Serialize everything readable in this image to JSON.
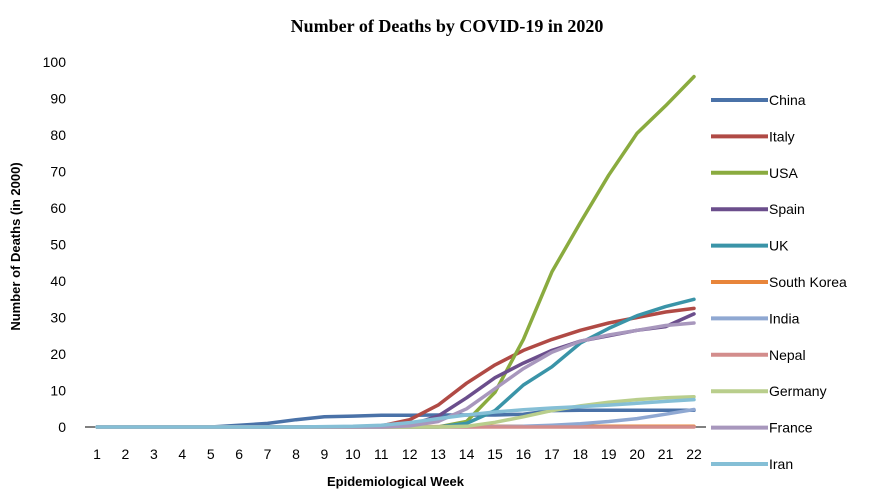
{
  "chart_data": {
    "type": "line",
    "title": "Number of Deaths by COVID-19 in 2020",
    "xlabel": "Epidemiological Week",
    "ylabel": "Number of Deaths (in 2000)",
    "ylim": [
      0,
      100
    ],
    "yticks": [
      0,
      10,
      20,
      30,
      40,
      50,
      60,
      70,
      80,
      90,
      100
    ],
    "categories": [
      "1",
      "2",
      "3",
      "4",
      "5",
      "6",
      "7",
      "8",
      "9",
      "10",
      "11",
      "12",
      "13",
      "14",
      "15",
      "16",
      "17",
      "18",
      "19",
      "20",
      "21",
      "22"
    ],
    "grid": false,
    "legend_position": "right",
    "series": [
      {
        "name": "China",
        "color": "#4a72a8",
        "values": [
          0,
          0,
          0,
          0,
          0,
          0.5,
          1,
          2,
          2.8,
          3,
          3.2,
          3.2,
          3.3,
          3.3,
          3.3,
          3.5,
          4.5,
          4.6,
          4.6,
          4.6,
          4.6,
          4.6
        ]
      },
      {
        "name": "Italy",
        "color": "#b04a45",
        "values": [
          0,
          0,
          0,
          0,
          0,
          0,
          0,
          0,
          0,
          0,
          0.3,
          2,
          6,
          12,
          17,
          21,
          24,
          26.5,
          28.5,
          30,
          31.5,
          32.5
        ]
      },
      {
        "name": "USA",
        "color": "#8aab3f",
        "values": [
          0,
          0,
          0,
          0,
          0,
          0,
          0,
          0,
          0,
          0,
          0,
          0,
          0,
          1.5,
          9.5,
          24,
          42.5,
          56,
          69,
          80.5,
          88,
          96
        ]
      },
      {
        "name": "Spain",
        "color": "#6b4e8c",
        "values": [
          0,
          0,
          0,
          0,
          0,
          0,
          0,
          0,
          0,
          0,
          0,
          0.5,
          3,
          8,
          13.5,
          17.5,
          21,
          23.5,
          25,
          26.5,
          27.5,
          31
        ]
      },
      {
        "name": "UK",
        "color": "#3a94a8",
        "values": [
          0,
          0,
          0,
          0,
          0,
          0,
          0,
          0,
          0,
          0,
          0,
          0,
          0,
          1,
          4.5,
          11.5,
          16.5,
          23,
          27,
          30.5,
          33,
          35
        ]
      },
      {
        "name": "South Korea",
        "color": "#e8853a",
        "values": [
          0,
          0,
          0,
          0,
          0,
          0,
          0,
          0,
          0,
          0,
          0,
          0.1,
          0.1,
          0.1,
          0.2,
          0.2,
          0.2,
          0.2,
          0.2,
          0.2,
          0.2,
          0.2
        ]
      },
      {
        "name": "India",
        "color": "#8fa8d2",
        "values": [
          0,
          0,
          0,
          0,
          0,
          0,
          0,
          0,
          0,
          0,
          0,
          0,
          0,
          0,
          0.1,
          0.2,
          0.5,
          0.9,
          1.5,
          2.3,
          3.5,
          4.8
        ]
      },
      {
        "name": "Nepal",
        "color": "#d38d8c",
        "values": [
          0,
          0,
          0,
          0,
          0,
          0,
          0,
          0,
          0,
          0,
          0,
          0,
          0,
          0,
          0,
          0,
          0,
          0,
          0,
          0,
          0,
          0
        ]
      },
      {
        "name": "Germany",
        "color": "#b9ce8c",
        "values": [
          0,
          0,
          0,
          0,
          0,
          0,
          0,
          0,
          0,
          0,
          0,
          0,
          0,
          0.2,
          1.3,
          2.8,
          4.5,
          5.8,
          6.8,
          7.5,
          8,
          8.3
        ]
      },
      {
        "name": "France",
        "color": "#a897bd",
        "values": [
          0,
          0,
          0,
          0,
          0,
          0,
          0,
          0,
          0,
          0,
          0,
          0.3,
          1.5,
          5,
          10.5,
          16,
          20.5,
          23.5,
          25.2,
          26.5,
          27.8,
          28.5
        ]
      },
      {
        "name": "Iran",
        "color": "#85bfd6",
        "values": [
          0,
          0,
          0,
          0,
          0,
          0,
          0,
          0,
          0.1,
          0.2,
          0.5,
          1.2,
          2.3,
          3.3,
          4.1,
          4.7,
          5.2,
          5.6,
          6,
          6.5,
          7,
          7.5
        ]
      }
    ]
  }
}
